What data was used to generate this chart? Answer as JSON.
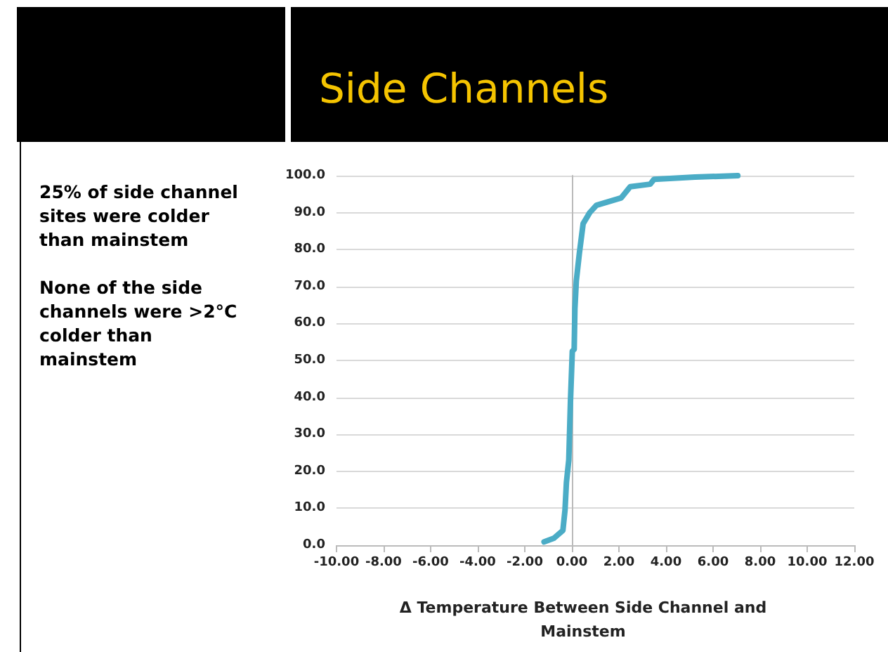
{
  "chart_data": {
    "type": "line",
    "title": "Side Channels",
    "xlabel": "Δ Temperature Between Side Channel and Mainstem",
    "annotations": [
      "25% of side channel sites were colder than mainstem",
      "None of the side channels were >2°C colder than mainstem"
    ],
    "x": [
      -1.18,
      -0.76,
      -0.38,
      -0.29,
      -0.23,
      -0.13,
      -0.06,
      0.02,
      0.1,
      0.13,
      0.19,
      0.32,
      0.48,
      0.76,
      1.05,
      2.1,
      2.48,
      3.33,
      3.49,
      5.24,
      7.05
    ],
    "series": [
      {
        "color": "#4bacc6",
        "values": [
          0.9,
          1.9,
          4,
          9.5,
          17,
          23,
          38.6,
          52.5,
          53,
          64,
          71.5,
          79,
          87,
          90,
          92,
          94,
          97,
          97.7,
          99,
          99.6,
          100
        ]
      }
    ],
    "xlim": [
      -10,
      12
    ],
    "xticks": [
      {
        "value": -10,
        "label": "-10.00"
      },
      {
        "value": -8,
        "label": "-8.00"
      },
      {
        "value": -6,
        "label": "-6.00"
      },
      {
        "value": -4,
        "label": "-4.00"
      },
      {
        "value": -2,
        "label": "-2.00"
      },
      {
        "value": 0,
        "label": "0.00"
      },
      {
        "value": 2,
        "label": "2.00"
      },
      {
        "value": 4,
        "label": "4.00"
      },
      {
        "value": 6,
        "label": "6.00"
      },
      {
        "value": 8,
        "label": "8.00"
      },
      {
        "value": 10,
        "label": "10.00"
      },
      {
        "value": 12,
        "label": "12.00"
      }
    ],
    "ylim": [
      0,
      100
    ],
    "yticks": [
      {
        "value": 0,
        "label": "0.0"
      },
      {
        "value": 10,
        "label": "10.0"
      },
      {
        "value": 20,
        "label": "20.0"
      },
      {
        "value": 30,
        "label": "30.0"
      },
      {
        "value": 40,
        "label": "40.0"
      },
      {
        "value": 50,
        "label": "50.0"
      },
      {
        "value": 60,
        "label": "60.0"
      },
      {
        "value": 70,
        "label": "70.0"
      },
      {
        "value": 80,
        "label": "80.0"
      },
      {
        "value": 90,
        "label": "90.0"
      },
      {
        "value": 100,
        "label": "100.0"
      }
    ],
    "grid": "y",
    "marker": "none",
    "line_style": "solid"
  }
}
